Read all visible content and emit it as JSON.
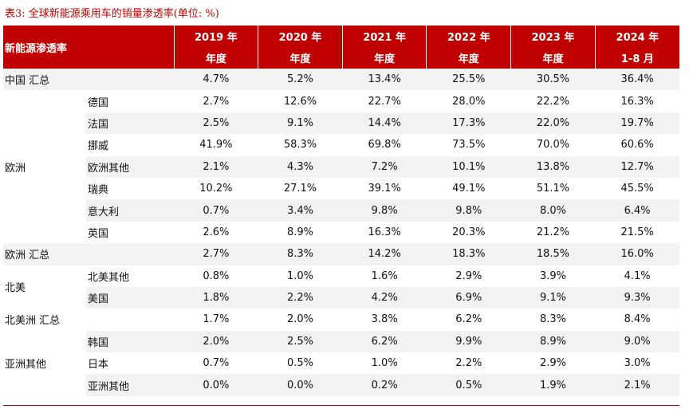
{
  "caption": "表3:  全球新能源乘用车的销量渗透率(单位: %)",
  "header": {
    "corner": "新能源渗透率",
    "years": [
      "2019 年",
      "2020 年",
      "2021 年",
      "2022 年",
      "2023 年",
      "2024 年"
    ],
    "periods": [
      "年度",
      "年度",
      "年度",
      "年度",
      "年度",
      "1-8 月"
    ]
  },
  "sections": [
    {
      "label": "中国 汇总",
      "rows": [
        {
          "values": [
            "4.7%",
            "5.2%",
            "13.4%",
            "25.5%",
            "30.5%",
            "36.4%"
          ]
        }
      ]
    },
    {
      "label": "欧洲",
      "rows": [
        {
          "name": "德国",
          "values": [
            "2.7%",
            "12.6%",
            "22.7%",
            "28.0%",
            "22.2%",
            "16.3%"
          ]
        },
        {
          "name": "法国",
          "values": [
            "2.5%",
            "9.1%",
            "14.4%",
            "17.3%",
            "22.0%",
            "19.7%"
          ]
        },
        {
          "name": "挪威",
          "values": [
            "41.9%",
            "58.3%",
            "69.8%",
            "73.5%",
            "70.0%",
            "60.6%"
          ]
        },
        {
          "name": "欧洲其他",
          "values": [
            "2.1%",
            "4.3%",
            "7.2%",
            "10.1%",
            "13.8%",
            "12.7%"
          ]
        },
        {
          "name": "瑞典",
          "values": [
            "10.2%",
            "27.1%",
            "39.1%",
            "49.1%",
            "51.1%",
            "45.5%"
          ]
        },
        {
          "name": "意大利",
          "values": [
            "0.7%",
            "3.4%",
            "9.8%",
            "9.8%",
            "8.0%",
            "6.4%"
          ]
        },
        {
          "name": "英国",
          "values": [
            "2.6%",
            "8.9%",
            "16.3%",
            "20.3%",
            "21.2%",
            "21.5%"
          ]
        }
      ]
    },
    {
      "label": "欧洲 汇总",
      "rows": [
        {
          "values": [
            "2.7%",
            "8.3%",
            "14.2%",
            "18.3%",
            "18.5%",
            "16.0%"
          ]
        }
      ]
    },
    {
      "label": "北美",
      "rows": [
        {
          "name": "北美其他",
          "values": [
            "0.8%",
            "1.0%",
            "1.6%",
            "2.9%",
            "3.9%",
            "4.1%"
          ]
        },
        {
          "name": "美国",
          "values": [
            "1.8%",
            "2.2%",
            "4.2%",
            "6.9%",
            "9.1%",
            "9.3%"
          ]
        }
      ]
    },
    {
      "label": "北美洲 汇总",
      "rows": [
        {
          "values": [
            "1.7%",
            "2.0%",
            "3.8%",
            "6.2%",
            "8.3%",
            "8.4%"
          ]
        }
      ]
    },
    {
      "label": "亚洲其他",
      "rows": [
        {
          "name": "韩国",
          "values": [
            "2.0%",
            "2.5%",
            "6.2%",
            "9.9%",
            "8.9%",
            "9.0%"
          ]
        },
        {
          "name": "日本",
          "values": [
            "0.7%",
            "0.5%",
            "1.0%",
            "2.2%",
            "2.9%",
            "3.0%"
          ]
        },
        {
          "name": "亚洲其他",
          "values": [
            "0.0%",
            "0.0%",
            "0.2%",
            "0.5%",
            "1.9%",
            "2.1%"
          ]
        }
      ]
    }
  ]
}
